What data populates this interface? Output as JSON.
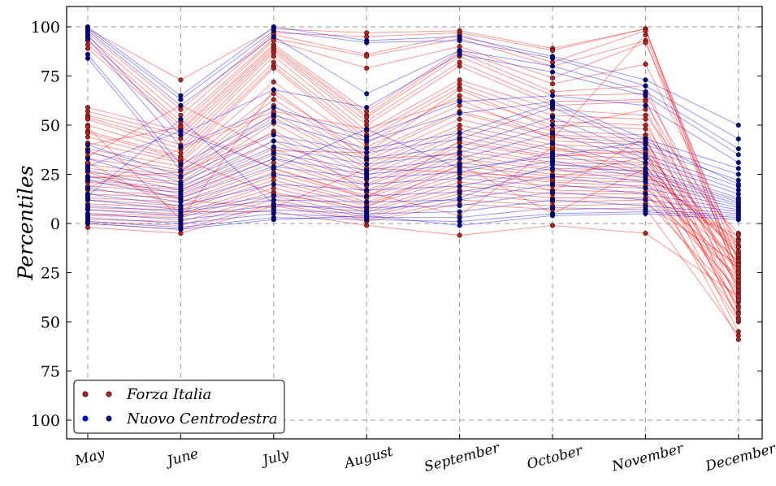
{
  "chart_data": {
    "type": "line",
    "ylabel": "Percentiles",
    "xlabel": "",
    "categories": [
      "May",
      "June",
      "July",
      "August",
      "September",
      "October",
      "November",
      "December"
    ],
    "yticks": [
      100,
      75,
      50,
      25,
      0,
      25,
      50,
      75,
      100
    ],
    "ylim": [
      -110,
      110
    ],
    "grid": true,
    "legend_position": "bottom-left",
    "series": [
      {
        "name": "Forza Italia",
        "color": "#ff0000",
        "marker_color": "#b22222",
        "lines": [
          [
            99,
            73,
            99,
            97,
            98,
            89,
            99,
            -25
          ],
          [
            97,
            58,
            97,
            95,
            97,
            88,
            99,
            -30
          ],
          [
            95,
            55,
            96,
            86,
            96,
            82,
            98,
            -20
          ],
          [
            93,
            52,
            94,
            85,
            94,
            80,
            93,
            -28
          ],
          [
            91,
            50,
            93,
            79,
            90,
            74,
            92,
            -15
          ],
          [
            89,
            48,
            91,
            57,
            88,
            71,
            81,
            -12
          ],
          [
            59,
            47,
            90,
            55,
            87,
            67,
            70,
            -35
          ],
          [
            57,
            45,
            89,
            54,
            85,
            65,
            66,
            -18
          ],
          [
            55,
            43,
            88,
            52,
            82,
            62,
            63,
            -40
          ],
          [
            54,
            40,
            87,
            50,
            80,
            60,
            62,
            -22
          ],
          [
            53,
            38,
            85,
            47,
            73,
            58,
            55,
            -8
          ],
          [
            50,
            36,
            82,
            45,
            71,
            55,
            53,
            -45
          ],
          [
            47,
            34,
            80,
            43,
            69,
            52,
            50,
            -26
          ],
          [
            44,
            32,
            79,
            41,
            65,
            50,
            48,
            -33
          ],
          [
            41,
            31,
            72,
            39,
            60,
            47,
            45,
            -5
          ],
          [
            38,
            29,
            66,
            36,
            57,
            45,
            43,
            -48
          ],
          [
            36,
            27,
            63,
            34,
            56,
            44,
            41,
            -17
          ],
          [
            33,
            26,
            60,
            32,
            53,
            42,
            40,
            -38
          ],
          [
            30,
            24,
            56,
            30,
            50,
            40,
            38,
            -24
          ],
          [
            28,
            23,
            54,
            28,
            48,
            38,
            36,
            -55
          ],
          [
            26,
            21,
            51,
            26,
            46,
            37,
            35,
            -11
          ],
          [
            24,
            20,
            47,
            24,
            44,
            35,
            33,
            -31
          ],
          [
            22,
            18,
            42,
            22,
            41,
            33,
            31,
            -20
          ],
          [
            21,
            17,
            38,
            20,
            39,
            31,
            30,
            -42
          ],
          [
            19,
            16,
            35,
            19,
            37,
            30,
            28,
            -14
          ],
          [
            17,
            14,
            33,
            17,
            35,
            28,
            27,
            -36
          ],
          [
            15,
            13,
            31,
            16,
            33,
            27,
            25,
            -9
          ],
          [
            13,
            11,
            28,
            14,
            31,
            25,
            24,
            -29
          ],
          [
            12,
            9,
            26,
            13,
            29,
            24,
            22,
            -50
          ],
          [
            10,
            8,
            24,
            11,
            27,
            22,
            21,
            -19
          ],
          [
            8,
            7,
            22,
            10,
            25,
            21,
            19,
            -34
          ],
          [
            7,
            5,
            20,
            9,
            23,
            19,
            18,
            -23
          ],
          [
            5,
            4,
            18,
            7,
            21,
            17,
            16,
            -46
          ],
          [
            4,
            3,
            16,
            6,
            19,
            15,
            15,
            -27
          ],
          [
            2,
            1,
            14,
            4,
            17,
            13,
            13,
            -6
          ],
          [
            1,
            -1,
            12,
            3,
            15,
            11,
            12,
            -39
          ],
          [
            0,
            -3,
            10,
            2,
            12,
            9,
            10,
            -21
          ],
          [
            -2,
            -5,
            9,
            1,
            10,
            7,
            8,
            -57
          ],
          [
            34,
            60,
            37,
            36,
            68,
            48,
            58,
            -32
          ],
          [
            26,
            12,
            8,
            28,
            26,
            23,
            34,
            -16
          ],
          [
            40,
            49,
            28,
            13,
            42,
            34,
            37,
            -43
          ],
          [
            46,
            33,
            15,
            8,
            30,
            5,
            28,
            -59
          ],
          [
            31,
            6,
            6,
            -1,
            -6,
            -1,
            -5,
            -37
          ],
          [
            18,
            38,
            57,
            48,
            63,
            43,
            96,
            -25
          ],
          [
            23,
            26,
            46,
            16,
            4,
            39,
            26,
            -12
          ],
          [
            49,
            2,
            68,
            33,
            35,
            16,
            44,
            -49
          ]
        ]
      },
      {
        "name": "Nuovo Centrodestra",
        "color": "#0000ff",
        "marker_color": "#00008b",
        "lines": [
          [
            100,
            65,
            100,
            93,
            95,
            85,
            73,
            50
          ],
          [
            99,
            63,
            98,
            92,
            93,
            84,
            70,
            43
          ],
          [
            98,
            60,
            95,
            66,
            88,
            80,
            67,
            38
          ],
          [
            96,
            45,
            68,
            59,
            86,
            77,
            65,
            35
          ],
          [
            94,
            39,
            59,
            44,
            62,
            65,
            60,
            31
          ],
          [
            86,
            30,
            55,
            42,
            56,
            62,
            43,
            28
          ],
          [
            84,
            27,
            52,
            38,
            46,
            61,
            40,
            25
          ],
          [
            40,
            24,
            45,
            36,
            43,
            59,
            38,
            22
          ],
          [
            37,
            21,
            42,
            33,
            39,
            54,
            35,
            19
          ],
          [
            33,
            19,
            39,
            30,
            36,
            50,
            33,
            17
          ],
          [
            27,
            17,
            36,
            27,
            33,
            46,
            31,
            15
          ],
          [
            24,
            15,
            33,
            25,
            30,
            41,
            28,
            13
          ],
          [
            22,
            13,
            29,
            23,
            26,
            36,
            25,
            11
          ],
          [
            18,
            11,
            25,
            20,
            23,
            32,
            23,
            10
          ],
          [
            15,
            9,
            20,
            17,
            19,
            28,
            21,
            9
          ],
          [
            12,
            7,
            14,
            14,
            16,
            24,
            18,
            8
          ],
          [
            9,
            6,
            12,
            11,
            12,
            20,
            15,
            7
          ],
          [
            7,
            4,
            9,
            8,
            9,
            16,
            12,
            6
          ],
          [
            5,
            2,
            7,
            5,
            6,
            12,
            9,
            5
          ],
          [
            3,
            0,
            5,
            3,
            3,
            8,
            7,
            4
          ],
          [
            1,
            -2,
            3,
            2,
            1,
            5,
            6,
            3
          ],
          [
            0,
            -3,
            2,
            4,
            -1,
            4,
            5,
            2
          ],
          [
            29,
            47,
            28,
            48,
            28,
            34,
            42,
            20
          ],
          [
            14,
            53,
            10,
            6,
            13,
            30,
            26,
            12
          ]
        ]
      }
    ]
  }
}
